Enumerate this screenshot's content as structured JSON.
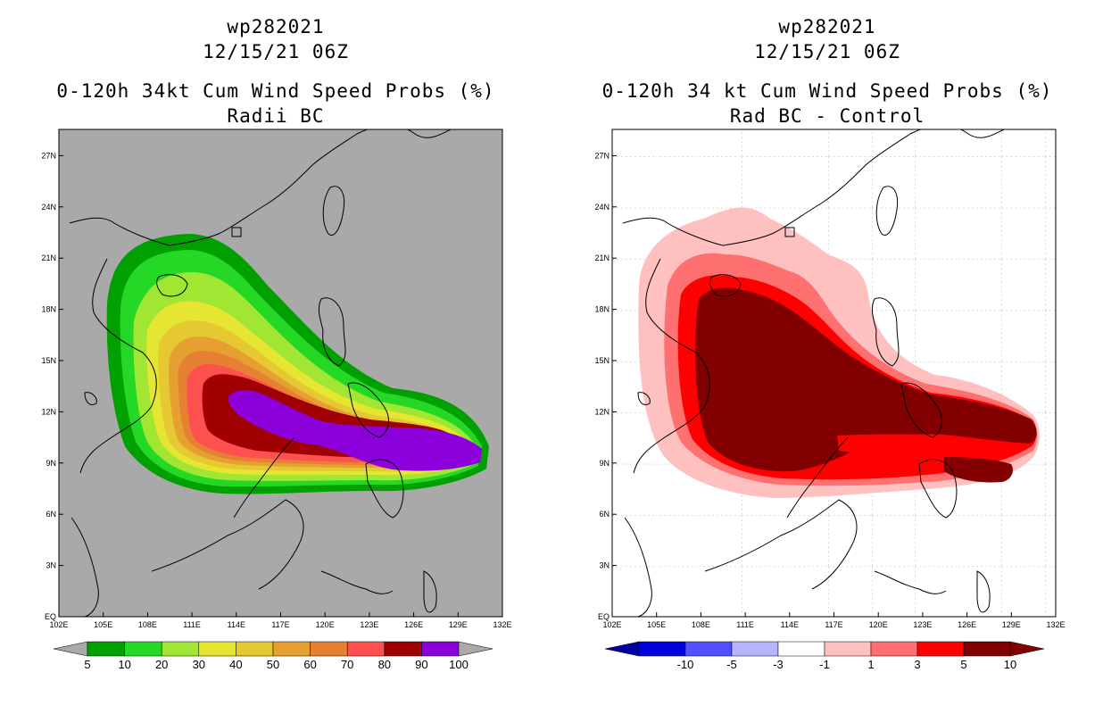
{
  "left": {
    "storm": "wp282021",
    "datetime": "12/15/21 06Z",
    "product": "0-120h 34kt Cum Wind Speed Probs (%)",
    "subtitle": "Radii BC",
    "colorbar": {
      "labels": [
        "5",
        "10",
        "20",
        "30",
        "40",
        "50",
        "60",
        "70",
        "80",
        "90",
        "100"
      ],
      "colors": [
        "#00a000",
        "#25d825",
        "#a0e632",
        "#e6e632",
        "#e6c832",
        "#e6a032",
        "#e68032",
        "#ff5050",
        "#a00000",
        "#8c00dc"
      ]
    }
  },
  "right": {
    "storm": "wp282021",
    "datetime": "12/15/21 06Z",
    "product": "0-120h 34 kt Cum Wind Speed Probs (%)",
    "subtitle": "Rad BC - Control",
    "colorbar": {
      "labels": [
        "-10",
        "-5",
        "-3",
        "-1",
        "1",
        "3",
        "5",
        "10"
      ],
      "colors": [
        "#0000dc",
        "#5050ff",
        "#b4b4ff",
        "#ffffff",
        "#ffc0c0",
        "#ff7070",
        "#ff0000",
        "#820000"
      ]
    }
  },
  "axes": {
    "x_ticks": [
      "102E",
      "105E",
      "108E",
      "111E",
      "114E",
      "117E",
      "120E",
      "123E",
      "126E",
      "129E",
      "132E"
    ],
    "y_ticks": [
      "EQ",
      "3N",
      "6N",
      "9N",
      "12N",
      "15N",
      "18N",
      "21N",
      "24N",
      "27N"
    ]
  },
  "colors": {
    "land_bg_left": "#a9a9a9",
    "coast": "#000000"
  }
}
